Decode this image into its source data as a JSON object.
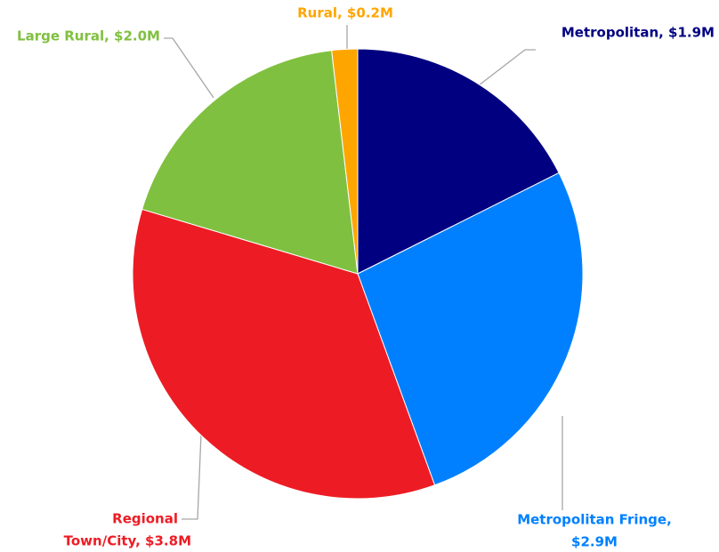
{
  "chart_data": {
    "type": "pie",
    "labels": [
      [
        "Metropolitan, $1.9M"
      ],
      [
        "Metropolitan Fringe,",
        "$2.9M"
      ],
      [
        "Regional",
        "Town/City, $3.8M"
      ],
      [
        "Large Rural, $2.0M"
      ],
      [
        "Rural, $0.2M"
      ]
    ],
    "values": [
      1.9,
      2.9,
      3.8,
      2.0,
      0.2
    ],
    "colors": [
      "#000080",
      "#0080ff",
      "#ed1c24",
      "#80c040",
      "#ffa500"
    ]
  }
}
